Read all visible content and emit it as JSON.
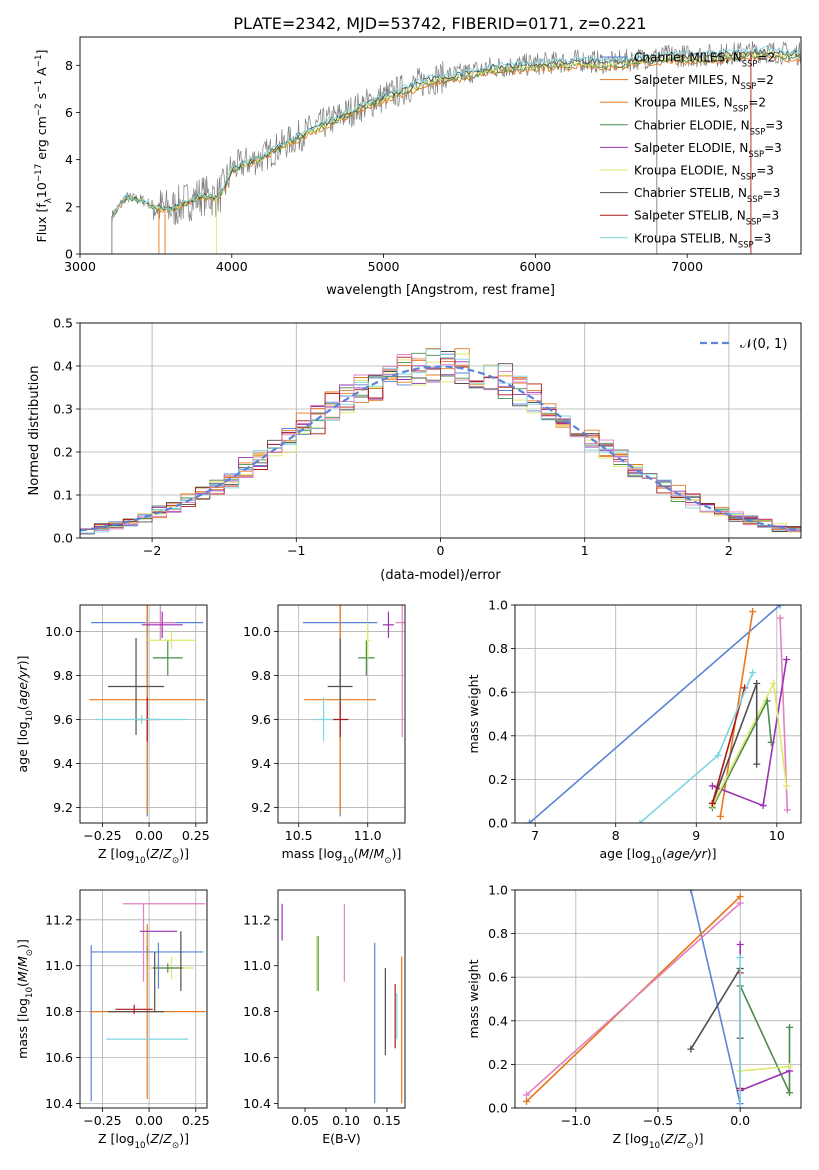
{
  "figure": {
    "title": "PLATE=2342, MJD=53742, FIBERID=0171, z=0.221",
    "colors": {
      "chabrier_miles": "#5b84d6",
      "salpeter_miles": "#e8781e",
      "kroupa_miles": "#e07b2a",
      "chabrier_elodie": "#4c8a4c",
      "salpeter_elodie": "#9932b0",
      "kroupa_elodie": "#dfe86a",
      "chabrier_stelib": "#505050",
      "salpeter_stelib": "#b01818",
      "kroupa_stelib": "#7fd6e0",
      "pink": "#e083c0",
      "data_gray": "#808080"
    }
  },
  "chart_data": [
    {
      "id": "spectrum",
      "type": "line",
      "xlabel": "wavelength [Angstrom, rest frame]",
      "ylabel": "Flux [f_λ 10^-17 erg cm^-2 s^-1 A^-1]",
      "xlim": [
        3000,
        7750
      ],
      "ylim": [
        0,
        9.2
      ],
      "xticks": [
        3000,
        4000,
        5000,
        6000,
        7000
      ],
      "yticks": [
        0,
        2,
        4,
        6,
        8
      ],
      "grid": false,
      "legend_position": "right",
      "legend": [
        {
          "label": "Chabrier MILES, N_SSP=2",
          "color_key": "chabrier_miles"
        },
        {
          "label": "Salpeter MILES, N_SSP=2",
          "color_key": "salpeter_miles"
        },
        {
          "label": "Kroupa MILES, N_SSP=2",
          "color_key": "kroupa_miles"
        },
        {
          "label": "Chabrier ELODIE, N_SSP=3",
          "color_key": "chabrier_elodie"
        },
        {
          "label": "Salpeter ELODIE, N_SSP=3",
          "color_key": "salpeter_elodie"
        },
        {
          "label": "Kroupa ELODIE, N_SSP=3",
          "color_key": "kroupa_elodie"
        },
        {
          "label": "Chabrier STELIB, N_SSP=3",
          "color_key": "chabrier_stelib"
        },
        {
          "label": "Salpeter STELIB, N_SSP=3",
          "color_key": "salpeter_stelib"
        },
        {
          "label": "Kroupa STELIB, N_SSP=3",
          "color_key": "kroupa_stelib"
        }
      ],
      "continuum": {
        "x": [
          3210,
          3300,
          3400,
          3500,
          3600,
          3700,
          3800,
          3900,
          3950,
          4000,
          4100,
          4200,
          4300,
          4500,
          4700,
          4900,
          5100,
          5300,
          5500,
          5700,
          5900,
          6100,
          6300,
          6500,
          6700,
          6900,
          7100,
          7300,
          7500,
          7700
        ],
        "y": [
          1.6,
          2.4,
          2.3,
          2.0,
          1.9,
          2.2,
          2.5,
          2.4,
          2.8,
          3.6,
          3.9,
          4.1,
          4.5,
          5.2,
          5.8,
          6.4,
          6.9,
          7.4,
          7.6,
          7.9,
          8.0,
          8.1,
          8.2,
          8.1,
          8.3,
          8.4,
          8.4,
          8.5,
          8.6,
          8.5
        ]
      }
    },
    {
      "id": "residuals",
      "type": "histogram",
      "xlabel": "(data-model)/error",
      "ylabel": "Normed distribution",
      "xlim": [
        -2.5,
        2.5
      ],
      "ylim": [
        0,
        0.5
      ],
      "xticks": [
        -2,
        -1,
        0,
        1,
        2
      ],
      "yticks": [
        0.0,
        0.1,
        0.2,
        0.3,
        0.4,
        0.5
      ],
      "grid": true,
      "legend_position": "top-right",
      "reference_curve": {
        "label": "𝒩(0, 1)",
        "mean": 0,
        "sigma": 1,
        "color_key": "chabrier_miles",
        "style": "dashed"
      }
    },
    {
      "id": "age_vs_Z",
      "type": "errorbar",
      "xlabel": "Z [log10(Z/Z⊙)]",
      "ylabel": "age [log10(age/yr)]",
      "xlim": [
        -0.37,
        0.31
      ],
      "ylim": [
        9.13,
        10.12
      ],
      "xticks": [
        -0.25,
        0.0,
        0.25
      ],
      "yticks": [
        9.2,
        9.4,
        9.6,
        9.8,
        10.0
      ],
      "grid": true,
      "points": [
        {
          "color_key": "chabrier_miles",
          "x": -0.01,
          "xerr": 0.3,
          "y": 10.04,
          "yerr": 0.88
        },
        {
          "color_key": "salpeter_miles",
          "x": -0.01,
          "xerr": 0.31,
          "y": 9.69,
          "yerr": 0.52
        },
        {
          "color_key": "pink",
          "x": 0.06,
          "xerr": 0.08,
          "y": 10.04,
          "yerr": 0.08
        },
        {
          "color_key": "chabrier_elodie",
          "x": 0.1,
          "xerr": 0.08,
          "y": 9.88,
          "yerr": 0.08
        },
        {
          "color_key": "salpeter_elodie",
          "x": 0.07,
          "xerr": 0.11,
          "y": 10.03,
          "yerr": 0.06
        },
        {
          "color_key": "kroupa_elodie",
          "x": 0.12,
          "xerr": 0.13,
          "y": 9.96,
          "yerr": 0.04
        },
        {
          "color_key": "chabrier_stelib",
          "x": -0.07,
          "xerr": 0.15,
          "y": 9.75,
          "yerr": 0.22
        },
        {
          "color_key": "salpeter_stelib",
          "x": -0.01,
          "xerr": 0.06,
          "y": 9.6,
          "yerr": 0.1
        },
        {
          "color_key": "kroupa_stelib",
          "x": -0.04,
          "xerr": 0.25,
          "y": 9.6,
          "yerr": 0.02
        }
      ]
    },
    {
      "id": "age_vs_mass",
      "type": "errorbar",
      "xlabel": "mass [log10(M/M⊙)]",
      "ylabel": "",
      "xlim": [
        10.35,
        11.27
      ],
      "ylim": [
        9.13,
        10.12
      ],
      "xticks": [
        10.5,
        11.0
      ],
      "yticks": [
        9.2,
        9.4,
        9.6,
        9.8,
        10.0
      ],
      "grid": true,
      "points": [
        {
          "color_key": "chabrier_miles",
          "x": 10.8,
          "xerr": 0.27,
          "y": 10.04,
          "yerr": 0.88
        },
        {
          "color_key": "salpeter_miles",
          "x": 10.8,
          "xerr": 0.26,
          "y": 9.69,
          "yerr": 0.52
        },
        {
          "color_key": "pink",
          "x": 11.25,
          "xerr": 0.05,
          "y": 10.04,
          "yerr": 0.52
        },
        {
          "color_key": "chabrier_elodie",
          "x": 10.99,
          "xerr": 0.06,
          "y": 9.88,
          "yerr": 0.08
        },
        {
          "color_key": "salpeter_elodie",
          "x": 11.15,
          "xerr": 0.04,
          "y": 10.03,
          "yerr": 0.06
        },
        {
          "color_key": "kroupa_elodie",
          "x": 11.0,
          "xerr": 0.02,
          "y": 9.96,
          "yerr": 0.08
        },
        {
          "color_key": "chabrier_stelib",
          "x": 10.8,
          "xerr": 0.09,
          "y": 9.75,
          "yerr": 0.22
        },
        {
          "color_key": "salpeter_stelib",
          "x": 10.8,
          "xerr": 0.06,
          "y": 9.6,
          "yerr": 0.08
        },
        {
          "color_key": "kroupa_stelib",
          "x": 10.68,
          "xerr": 0.07,
          "y": 9.6,
          "yerr": 0.1
        }
      ]
    },
    {
      "id": "weight_vs_age",
      "type": "line",
      "xlabel": "age [log10(age/yr)]",
      "ylabel": "mass weight",
      "xlim": [
        6.75,
        10.3
      ],
      "ylim": [
        0,
        1.0
      ],
      "xticks": [
        7,
        8,
        9,
        10
      ],
      "yticks": [
        0.0,
        0.2,
        0.4,
        0.6,
        0.8,
        1.0
      ],
      "grid": true,
      "series": [
        {
          "color_key": "chabrier_miles",
          "x": [
            6.93,
            10.04
          ],
          "y": [
            0.0,
            1.0
          ]
        },
        {
          "color_key": "salpeter_miles",
          "x": [
            9.3,
            9.7
          ],
          "y": [
            0.03,
            0.97
          ]
        },
        {
          "color_key": "pink",
          "x": [
            10.04,
            10.13
          ],
          "y": [
            0.94,
            0.06
          ]
        },
        {
          "color_key": "chabrier_elodie",
          "x": [
            9.2,
            9.88,
            9.93
          ],
          "y": [
            0.07,
            0.56,
            0.37
          ]
        },
        {
          "color_key": "salpeter_elodie",
          "x": [
            9.2,
            9.83,
            10.12
          ],
          "y": [
            0.17,
            0.08,
            0.75
          ]
        },
        {
          "color_key": "kroupa_elodie",
          "x": [
            9.2,
            9.96,
            10.12
          ],
          "y": [
            0.08,
            0.64,
            0.17
          ]
        },
        {
          "color_key": "chabrier_stelib",
          "x": [
            9.2,
            9.75,
            9.75
          ],
          "y": [
            0.09,
            0.64,
            0.27
          ]
        },
        {
          "color_key": "salpeter_stelib",
          "x": [
            9.2,
            9.6
          ],
          "y": [
            0.09,
            0.62
          ]
        },
        {
          "color_key": "kroupa_stelib",
          "x": [
            8.3,
            9.27,
            9.7
          ],
          "y": [
            0.0,
            0.31,
            0.69
          ]
        }
      ]
    },
    {
      "id": "mass_vs_Z",
      "type": "errorbar",
      "xlabel": "Z [log10(Z/Z⊙)]",
      "ylabel": "mass [log10(M/M⊙)]",
      "xlim": [
        -0.37,
        0.31
      ],
      "ylim": [
        10.38,
        11.33
      ],
      "xticks": [
        -0.25,
        0.0,
        0.25
      ],
      "yticks": [
        10.4,
        10.6,
        10.8,
        11.0,
        11.2
      ],
      "grid": true,
      "points": [
        {
          "color_key": "chabrier_miles",
          "x": -0.01,
          "xerr": 0.3,
          "y": 11.06,
          "yerr": 0.03
        },
        {
          "color_key": "chabrier_miles",
          "x": -0.31,
          "xerr": 0.0,
          "y": 10.75,
          "yerr": 0.34
        },
        {
          "color_key": "salpeter_miles",
          "x": -0.01,
          "xerr": 0.31,
          "y": 10.8,
          "yerr": 0.0
        },
        {
          "color_key": "salpeter_miles",
          "x": -0.01,
          "xerr": 0.0,
          "y": 10.8,
          "yerr": 0.38
        },
        {
          "color_key": "pink",
          "x": 0.08,
          "xerr": 0.22,
          "y": 11.27,
          "yerr": 0.0
        },
        {
          "color_key": "pink",
          "x": -0.03,
          "xerr": 0.0,
          "y": 11.1,
          "yerr": 0.17
        },
        {
          "color_key": "salpeter_elodie",
          "x": 0.05,
          "xerr": 0.1,
          "y": 11.15,
          "yerr": 0.0
        },
        {
          "color_key": "kroupa_elodie",
          "x": 0.12,
          "xerr": 0.12,
          "y": 10.99,
          "yerr": 0.05
        },
        {
          "color_key": "chabrier_elodie",
          "x": 0.1,
          "xerr": 0.08,
          "y": 10.99,
          "yerr": 0.02
        },
        {
          "color_key": "chabrier_stelib",
          "x": 0.17,
          "xerr": 0.0,
          "y": 11.02,
          "yerr": 0.13
        },
        {
          "color_key": "chabrier_stelib",
          "x": -0.07,
          "xerr": 0.15,
          "y": 10.8,
          "yerr": 0.0
        },
        {
          "color_key": "chabrier_stelib",
          "x": 0.03,
          "xerr": 0.0,
          "y": 10.93,
          "yerr": 0.13
        },
        {
          "color_key": "salpeter_stelib",
          "x": -0.08,
          "xerr": 0.1,
          "y": 10.81,
          "yerr": 0.02
        },
        {
          "color_key": "kroupa_stelib",
          "x": -0.01,
          "xerr": 0.22,
          "y": 10.68,
          "yerr": 0.0
        },
        {
          "color_key": "chabrier_miles",
          "x": 0.05,
          "xerr": 0.0,
          "y": 11.0,
          "yerr": 0.1
        }
      ]
    },
    {
      "id": "mass_vs_ebv",
      "type": "errorbar",
      "xlabel": "E(B-V)",
      "ylabel": "",
      "xlim": [
        0.017,
        0.172
      ],
      "ylim": [
        10.38,
        11.33
      ],
      "xticks": [
        0.05,
        0.1,
        0.15
      ],
      "yticks": [
        10.4,
        10.6,
        10.8,
        11.0,
        11.2
      ],
      "grid": false,
      "points": [
        {
          "color_key": "salpeter_elodie",
          "x": 0.022,
          "xerr": 0,
          "y": 11.19,
          "yerr": 0.08
        },
        {
          "color_key": "kroupa_elodie",
          "x": 0.064,
          "xerr": 0,
          "y": 11.01,
          "yerr": 0.12
        },
        {
          "color_key": "chabrier_elodie",
          "x": 0.066,
          "xerr": 0,
          "y": 11.01,
          "yerr": 0.12
        },
        {
          "color_key": "pink",
          "x": 0.098,
          "xerr": 0,
          "y": 11.1,
          "yerr": 0.17
        },
        {
          "color_key": "chabrier_miles",
          "x": 0.135,
          "xerr": 0,
          "y": 10.75,
          "yerr": 0.35
        },
        {
          "color_key": "chabrier_stelib",
          "x": 0.148,
          "xerr": 0,
          "y": 10.8,
          "yerr": 0.19
        },
        {
          "color_key": "salpeter_stelib",
          "x": 0.16,
          "xerr": 0,
          "y": 10.78,
          "yerr": 0.14
        },
        {
          "color_key": "kroupa_stelib",
          "x": 0.162,
          "xerr": 0,
          "y": 10.78,
          "yerr": 0.1
        },
        {
          "color_key": "salpeter_miles",
          "x": 0.168,
          "xerr": 0,
          "y": 10.72,
          "yerr": 0.32
        }
      ]
    },
    {
      "id": "weight_vs_Z",
      "type": "line",
      "xlabel": "Z [log10(Z/Z⊙)]",
      "ylabel": "mass weight",
      "xlim": [
        -1.37,
        0.37
      ],
      "ylim": [
        0,
        1.0
      ],
      "xticks": [
        -1.0,
        -0.5,
        0.0
      ],
      "yticks": [
        0.0,
        0.2,
        0.4,
        0.6,
        0.8,
        1.0
      ],
      "grid": true,
      "series": [
        {
          "color_key": "chabrier_miles",
          "x": [
            -0.3,
            0.0
          ],
          "y": [
            1.0,
            0.02
          ]
        },
        {
          "color_key": "salpeter_miles",
          "x": [
            -1.3,
            0.0
          ],
          "y": [
            0.03,
            0.97
          ]
        },
        {
          "color_key": "pink",
          "x": [
            -1.3,
            0.0
          ],
          "y": [
            0.06,
            0.94
          ]
        },
        {
          "color_key": "chabrier_elodie",
          "x": [
            0.0,
            0.3,
            0.3
          ],
          "y": [
            0.56,
            0.07,
            0.37
          ]
        },
        {
          "color_key": "salpeter_elodie",
          "x": [
            0.0,
            0.0,
            0.3
          ],
          "y": [
            0.75,
            0.08,
            0.17
          ]
        },
        {
          "color_key": "kroupa_elodie",
          "x": [
            0.0,
            0.0,
            0.3
          ],
          "y": [
            0.64,
            0.17,
            0.19
          ]
        },
        {
          "color_key": "chabrier_stelib",
          "x": [
            -0.3,
            0.0,
            0.0
          ],
          "y": [
            0.27,
            0.64,
            0.32
          ]
        },
        {
          "color_key": "salpeter_stelib",
          "x": [
            0.0,
            0.0
          ],
          "y": [
            0.62,
            0.09
          ]
        },
        {
          "color_key": "kroupa_stelib",
          "x": [
            0.0,
            0.0
          ],
          "y": [
            0.69,
            0.0
          ]
        }
      ]
    }
  ]
}
